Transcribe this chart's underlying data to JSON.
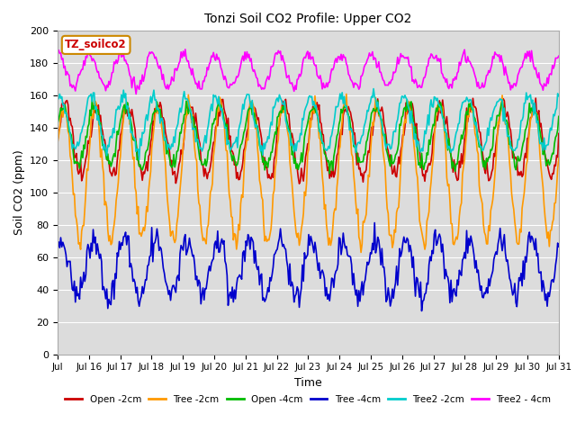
{
  "title": "Tonzi Soil CO2 Profile: Upper CO2",
  "xlabel": "Time",
  "ylabel": "Soil CO2 (ppm)",
  "ylim": [
    0,
    200
  ],
  "yticks": [
    0,
    20,
    40,
    60,
    80,
    100,
    120,
    140,
    160,
    180,
    200
  ],
  "xtick_labels": [
    "Jul",
    "Jul 16",
    "Jul 17",
    "Jul 18",
    "Jul 19",
    "Jul 20",
    "Jul 21",
    "Jul 22",
    "Jul 23",
    "Jul 24",
    "Jul 25",
    "Jul 26",
    "Jul 27",
    "Jul 28",
    "Jul 29",
    "Jul 30",
    "Jul 31"
  ],
  "n_points": 480,
  "background_color": "#dcdcdc",
  "grid_color": "#ffffff",
  "legend_label": "TZ_soilco2",
  "legend_box_facecolor": "#ffffff",
  "legend_box_edgecolor": "#cc8800",
  "legend_text_color": "#cc0000",
  "figsize": [
    6.4,
    4.8
  ],
  "dpi": 100,
  "series": [
    {
      "name": "Open -2cm",
      "color": "#cc0000",
      "lw": 1.2,
      "base": 132,
      "amp": 22,
      "phase": 0.0,
      "noise": 5,
      "period": 1.0
    },
    {
      "name": "Tree -2cm",
      "color": "#ff9900",
      "lw": 1.2,
      "base": 112,
      "amp": 42,
      "phase": 0.05,
      "noise": 6,
      "period": 1.0
    },
    {
      "name": "Open -4cm",
      "color": "#00bb00",
      "lw": 1.2,
      "base": 135,
      "amp": 18,
      "phase": 0.08,
      "noise": 4,
      "period": 1.0
    },
    {
      "name": "Tree -4cm",
      "color": "#0000cc",
      "lw": 1.2,
      "base": 53,
      "amp": 18,
      "phase": 0.12,
      "noise": 7,
      "period": 1.0
    },
    {
      "name": "Tree2 -2cm",
      "color": "#00cccc",
      "lw": 1.2,
      "base": 143,
      "amp": 16,
      "phase": 0.18,
      "noise": 4,
      "period": 1.0
    },
    {
      "name": "Tree2 - 4cm",
      "color": "#ff00ff",
      "lw": 1.2,
      "base": 175,
      "amp": 10,
      "phase": 0.22,
      "noise": 3,
      "period": 1.0
    }
  ]
}
